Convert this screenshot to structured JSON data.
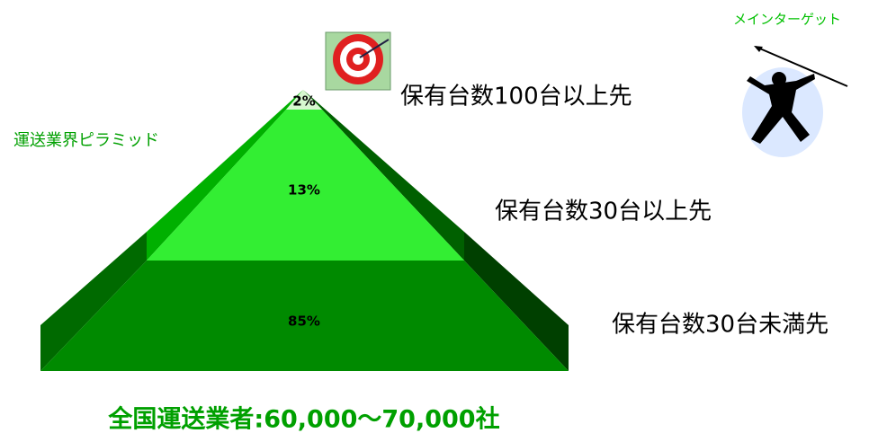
{
  "title": "運送業界ピラミッド",
  "target_label": "メインターゲット",
  "layers": [
    {
      "share": "2%",
      "description": "保有台数100台以上先"
    },
    {
      "share": "13%",
      "description": "保有台数30台以上先"
    },
    {
      "share": "85%",
      "description": "保有台数30台未満先"
    }
  ],
  "footer": "全国運送業者:60,000～70,000社"
}
